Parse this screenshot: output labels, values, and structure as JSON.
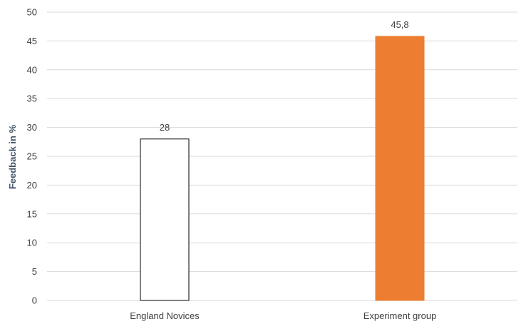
{
  "chart_data": {
    "type": "bar",
    "categories": [
      "England Novices",
      "Experiment group"
    ],
    "values": [
      28,
      45.8
    ],
    "value_labels": [
      "28",
      "45,8"
    ],
    "ylabel": "Feedback in %",
    "ylim": [
      0,
      50
    ],
    "yticks": [
      0,
      5,
      10,
      15,
      20,
      25,
      30,
      35,
      40,
      45,
      50
    ],
    "grid": true,
    "legend": "none",
    "bar_styles": [
      {
        "fill": "#ffffff",
        "stroke": "#000000"
      },
      {
        "fill": "#ed7d31",
        "stroke": "#ed7d31"
      }
    ]
  }
}
